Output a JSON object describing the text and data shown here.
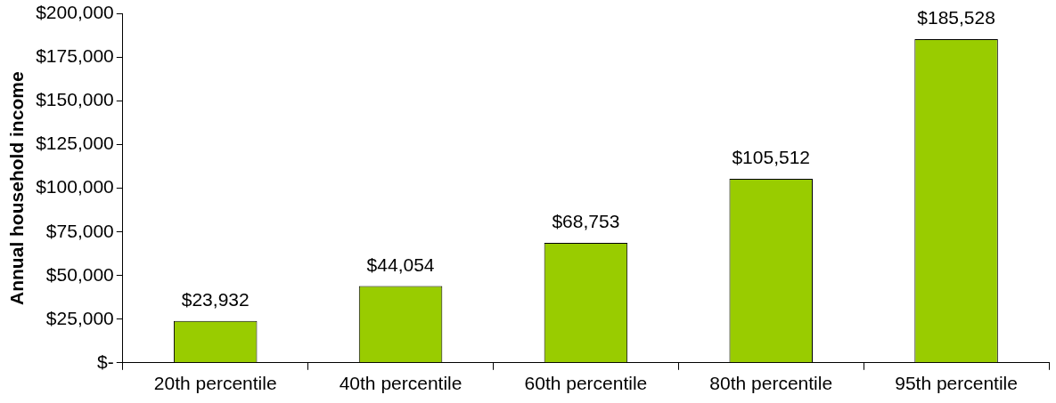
{
  "chart_data": {
    "type": "bar",
    "ylabel": "Annual household income",
    "categories": [
      "20th percentile",
      "40th percentile",
      "60th percentile",
      "80th percentile",
      "95th percentile"
    ],
    "values": [
      23932,
      44054,
      68753,
      105512,
      185528
    ],
    "value_labels": [
      "$23,932",
      "$44,054",
      "$68,753",
      "$105,512",
      "$185,528"
    ],
    "color": "#99cc00",
    "ylim": [
      0,
      200000
    ],
    "yticks": [
      {
        "value": 0,
        "label": "$-"
      },
      {
        "value": 25000,
        "label": "$25,000"
      },
      {
        "value": 50000,
        "label": "$50,000"
      },
      {
        "value": 75000,
        "label": "$75,000"
      },
      {
        "value": 100000,
        "label": "$100,000"
      },
      {
        "value": 125000,
        "label": "$125,000"
      },
      {
        "value": 150000,
        "label": "$150,000"
      },
      {
        "value": 175000,
        "label": "$175,000"
      },
      {
        "value": 200000,
        "label": "$200,000"
      }
    ],
    "grid": false,
    "legend": false
  }
}
